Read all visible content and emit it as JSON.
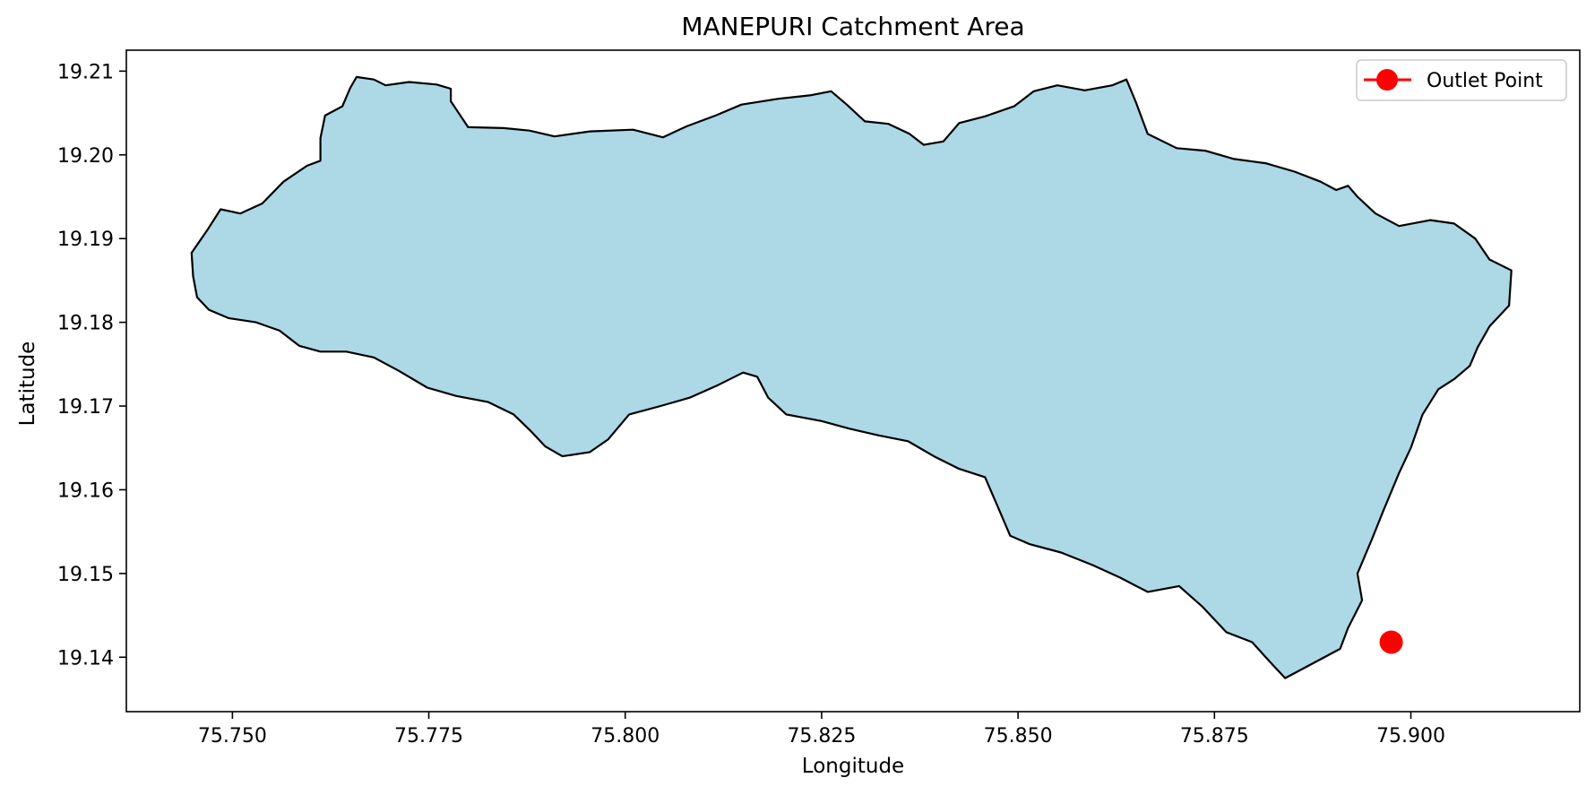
{
  "figure": {
    "title": "MANEPURI Catchment Area",
    "xlabel": "Longitude",
    "ylabel": "Latitude"
  },
  "chart_data": {
    "type": "map",
    "title": "MANEPURI Catchment Area",
    "xlabel": "Longitude",
    "ylabel": "Latitude",
    "xlim": [
      75.7365,
      75.9215
    ],
    "ylim": [
      19.1335,
      19.2125
    ],
    "x_ticks": [
      75.75,
      75.775,
      75.8,
      75.825,
      75.85,
      75.875,
      75.9
    ],
    "x_tick_labels": [
      "75.750",
      "75.775",
      "75.800",
      "75.825",
      "75.850",
      "75.875",
      "75.900"
    ],
    "y_ticks": [
      19.14,
      19.15,
      19.16,
      19.17,
      19.18,
      19.19,
      19.2,
      19.21
    ],
    "y_tick_labels": [
      "19.14",
      "19.15",
      "19.16",
      "19.17",
      "19.18",
      "19.19",
      "19.20",
      "19.21"
    ],
    "grid": false,
    "legend": {
      "placement": "top-right",
      "entries": [
        {
          "label": "Outlet Point",
          "color": "#ff0000",
          "marker": "circle"
        }
      ]
    },
    "catchment": {
      "fill": "#add8e6",
      "edge": "#000000",
      "boundary": [
        [
          75.7448,
          19.1883
        ],
        [
          75.7468,
          19.191
        ],
        [
          75.7485,
          19.1935
        ],
        [
          75.751,
          19.193
        ],
        [
          75.7538,
          19.1942
        ],
        [
          75.7565,
          19.1968
        ],
        [
          75.7595,
          19.1987
        ],
        [
          75.7612,
          19.1993
        ],
        [
          75.7612,
          19.202
        ],
        [
          75.7618,
          19.2047
        ],
        [
          75.764,
          19.2058
        ],
        [
          75.765,
          19.208
        ],
        [
          75.7658,
          19.2093
        ],
        [
          75.768,
          19.209
        ],
        [
          75.7695,
          19.2083
        ],
        [
          75.7725,
          19.2087
        ],
        [
          75.776,
          19.2084
        ],
        [
          75.7778,
          19.2079
        ],
        [
          75.7778,
          19.2064
        ],
        [
          75.7788,
          19.205
        ],
        [
          75.78,
          19.2033
        ],
        [
          75.7845,
          19.2032
        ],
        [
          75.7878,
          19.2029
        ],
        [
          75.791,
          19.2022
        ],
        [
          75.7955,
          19.2028
        ],
        [
          75.801,
          19.203
        ],
        [
          75.8048,
          19.2021
        ],
        [
          75.8078,
          19.2034
        ],
        [
          75.8115,
          19.2047
        ],
        [
          75.8148,
          19.206
        ],
        [
          75.8195,
          19.2067
        ],
        [
          75.8235,
          19.2071
        ],
        [
          75.8262,
          19.2076
        ],
        [
          75.8282,
          19.206
        ],
        [
          75.8305,
          19.204
        ],
        [
          75.8335,
          19.2037
        ],
        [
          75.8362,
          19.2025
        ],
        [
          75.838,
          19.2012
        ],
        [
          75.8405,
          19.2016
        ],
        [
          75.8425,
          19.2038
        ],
        [
          75.8458,
          19.2046
        ],
        [
          75.8495,
          19.2058
        ],
        [
          75.852,
          19.2076
        ],
        [
          75.855,
          19.2083
        ],
        [
          75.8585,
          19.2077
        ],
        [
          75.862,
          19.2083
        ],
        [
          75.8638,
          19.209
        ],
        [
          75.865,
          19.2063
        ],
        [
          75.8665,
          19.2025
        ],
        [
          75.8702,
          19.2008
        ],
        [
          75.8738,
          19.2005
        ],
        [
          75.8775,
          19.1995
        ],
        [
          75.8815,
          19.199
        ],
        [
          75.8852,
          19.198
        ],
        [
          75.8885,
          19.1968
        ],
        [
          75.8905,
          19.1958
        ],
        [
          75.892,
          19.1963
        ],
        [
          75.8932,
          19.195
        ],
        [
          75.8955,
          19.193
        ],
        [
          75.8985,
          19.1915
        ],
        [
          75.9025,
          19.1922
        ],
        [
          75.9055,
          19.1918
        ],
        [
          75.9082,
          19.19
        ],
        [
          75.91,
          19.1875
        ],
        [
          75.9128,
          19.1862
        ],
        [
          75.9125,
          19.182
        ],
        [
          75.91,
          19.1795
        ],
        [
          75.9085,
          19.177
        ],
        [
          75.9075,
          19.1748
        ],
        [
          75.9055,
          19.1732
        ],
        [
          75.9035,
          19.172
        ],
        [
          75.9015,
          19.169
        ],
        [
          75.9,
          19.165
        ],
        [
          75.8985,
          19.162
        ],
        [
          75.8965,
          19.1575
        ],
        [
          75.895,
          19.154
        ],
        [
          75.8932,
          19.15
        ],
        [
          75.8938,
          19.1468
        ],
        [
          75.892,
          19.1435
        ],
        [
          75.891,
          19.141
        ],
        [
          75.887,
          19.139
        ],
        [
          75.884,
          19.1375
        ],
        [
          75.882,
          19.1395
        ],
        [
          75.8798,
          19.1418
        ],
        [
          75.8765,
          19.143
        ],
        [
          75.8735,
          19.146
        ],
        [
          75.8705,
          19.1485
        ],
        [
          75.8665,
          19.1478
        ],
        [
          75.863,
          19.1495
        ],
        [
          75.8595,
          19.151
        ],
        [
          75.8555,
          19.1525
        ],
        [
          75.8515,
          19.1535
        ],
        [
          75.849,
          19.1545
        ],
        [
          75.8475,
          19.1578
        ],
        [
          75.8458,
          19.1615
        ],
        [
          75.8425,
          19.1625
        ],
        [
          75.8393,
          19.164
        ],
        [
          75.836,
          19.1658
        ],
        [
          75.8322,
          19.1665
        ],
        [
          75.8285,
          19.1673
        ],
        [
          75.825,
          19.1682
        ],
        [
          75.8205,
          19.169
        ],
        [
          75.8182,
          19.171
        ],
        [
          75.8168,
          19.1735
        ],
        [
          75.815,
          19.174
        ],
        [
          75.8118,
          19.1725
        ],
        [
          75.8082,
          19.171
        ],
        [
          75.8045,
          19.17
        ],
        [
          75.8005,
          19.169
        ],
        [
          75.7978,
          19.166
        ],
        [
          75.7955,
          19.1645
        ],
        [
          75.792,
          19.164
        ],
        [
          75.7898,
          19.1652
        ],
        [
          75.788,
          19.167
        ],
        [
          75.7858,
          19.169
        ],
        [
          75.7825,
          19.1705
        ],
        [
          75.7785,
          19.1712
        ],
        [
          75.7748,
          19.1722
        ],
        [
          75.7712,
          19.1742
        ],
        [
          75.768,
          19.1758
        ],
        [
          75.7645,
          19.1765
        ],
        [
          75.7612,
          19.1765
        ],
        [
          75.7585,
          19.1772
        ],
        [
          75.756,
          19.179
        ],
        [
          75.753,
          19.18
        ],
        [
          75.7495,
          19.1805
        ],
        [
          75.747,
          19.1815
        ],
        [
          75.7455,
          19.183
        ],
        [
          75.745,
          19.1855
        ]
      ]
    },
    "outlet_point": {
      "label": "Outlet Point",
      "lon": 75.8975,
      "lat": 19.1418,
      "color": "#ff0000"
    }
  }
}
